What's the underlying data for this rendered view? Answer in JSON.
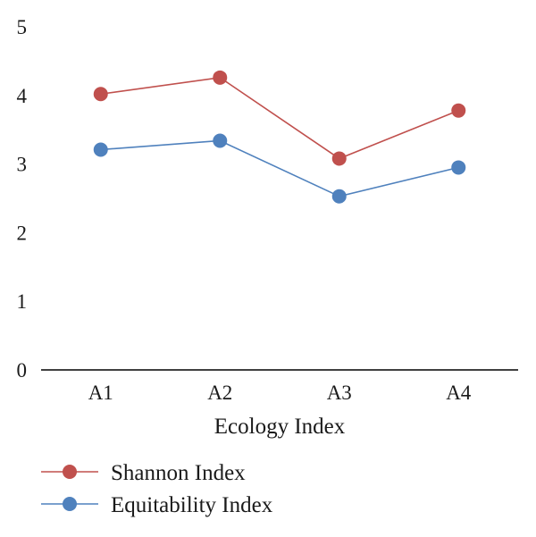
{
  "chart_data": {
    "type": "line",
    "categories": [
      "A1",
      "A2",
      "A3",
      "A4"
    ],
    "series": [
      {
        "name": "Shannon Index",
        "values": [
          4.02,
          4.26,
          3.08,
          3.78
        ],
        "color": "#c0504d"
      },
      {
        "name": "Equitability Index",
        "values": [
          3.21,
          3.34,
          2.53,
          2.95
        ],
        "color": "#4f81bd"
      }
    ],
    "xlabel": "Ecology Index",
    "ylabel": "",
    "ylim": [
      0,
      5
    ],
    "yticks": [
      0,
      1,
      2,
      3,
      4,
      5
    ],
    "grid": false,
    "legend": "bottom"
  }
}
